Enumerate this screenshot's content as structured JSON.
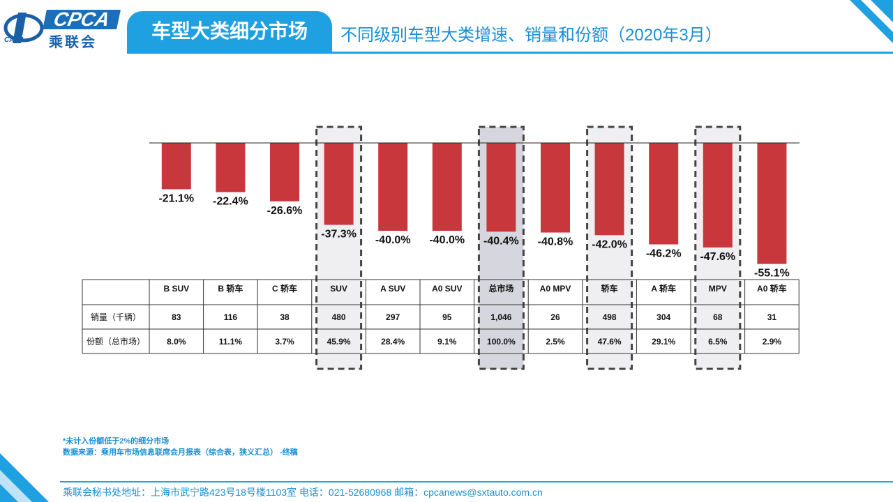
{
  "logo": {
    "brand": "CPCA",
    "chinese": "乘联会",
    "small": "CADA"
  },
  "header": {
    "title": "车型大类细分市场",
    "subtitle": "不同级别车型大类增速、销量和份额（2020年3月）"
  },
  "chart_data": {
    "type": "bar",
    "categories": [
      "B SUV",
      "B 轿车",
      "C 轿车",
      "SUV",
      "A SUV",
      "A0 SUV",
      "总市场",
      "A0 MPV",
      "轿车",
      "A 轿车",
      "MPV",
      "A0 轿车"
    ],
    "values": [
      -21.1,
      -22.4,
      -26.6,
      -37.3,
      -40.0,
      -40.0,
      -40.4,
      -40.8,
      -42.0,
      -46.2,
      -47.6,
      -55.1
    ],
    "value_labels": [
      "-21.1%",
      "-22.4%",
      "-26.6%",
      "-37.3%",
      "-40.0%",
      "-40.0%",
      "-40.4%",
      "-40.8%",
      "-42.0%",
      "-46.2%",
      "-47.6%",
      "-55.1%"
    ],
    "ylim": [
      -60,
      0
    ],
    "highlighted": [
      "SUV",
      "总市场",
      "轿车",
      "MPV"
    ],
    "bar_color": "#c8373c",
    "table": {
      "row_labels": [
        "销量（千辆）",
        "份额（总市场）"
      ],
      "sales": [
        "83",
        "116",
        "38",
        "480",
        "297",
        "95",
        "1,046",
        "26",
        "498",
        "304",
        "68",
        "31"
      ],
      "share": [
        "8.0%",
        "11.1%",
        "3.7%",
        "45.9%",
        "28.4%",
        "9.1%",
        "100.0%",
        "2.5%",
        "47.6%",
        "29.1%",
        "6.5%",
        "2.9%"
      ]
    }
  },
  "notes": {
    "note1": "*未计入份额低于2%的细分市场",
    "note2": "数据来源：乘用车市场信息联席会月报表（综合表，狭义汇总）  -终稿"
  },
  "footer": {
    "text": "乘联会秘书处地址：上海市武宁路423号18号楼1103室  电话：021-52680968   邮箱：cpcanews@sxtauto.com.cn"
  },
  "colors": {
    "accent": "#1fa0e0",
    "text_blue": "#1a8fd4",
    "bar": "#c8373c"
  }
}
